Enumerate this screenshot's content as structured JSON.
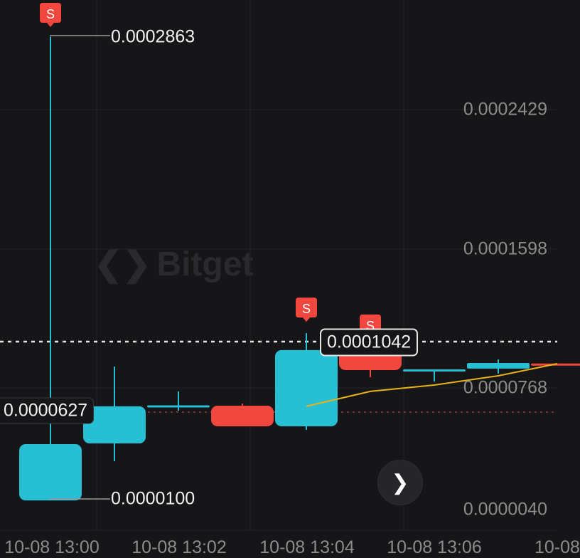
{
  "brand": "Bitget",
  "chart_data": {
    "type": "candlestick",
    "x_tick_labels": [
      "10-08 13:00",
      "10-08 13:02",
      "10-08 13:04",
      "10-08 13:06",
      "10-08"
    ],
    "y_tick_labels": [
      "0.0002429",
      "0.0001598",
      "0.0000768",
      "0.0000040"
    ],
    "y_ticks": [
      0.0002429,
      0.0001598,
      7.68e-05,
      4e-06
    ],
    "candles": [
      {
        "o": 1e-05,
        "h": 0.0002863,
        "l": 1e-05,
        "c": 4.36e-05
      },
      {
        "o": 4.4e-05,
        "h": 8.98e-05,
        "l": 3.34e-05,
        "c": 6.61e-05
      },
      {
        "o": 6.64e-05,
        "h": 7.5e-05,
        "l": 6.35e-05,
        "c": 6.67e-05
      },
      {
        "o": 6.65e-05,
        "h": 6.77e-05,
        "l": 5.42e-05,
        "c": 5.42e-05
      },
      {
        "o": 5.42e-05,
        "h": 0.0001097,
        "l": 5.21e-05,
        "c": 9.96e-05
      },
      {
        "o": 9.96e-05,
        "h": 9.96e-05,
        "l": 8.34e-05,
        "c": 8.77e-05
      },
      {
        "o": 8.77e-05,
        "h": 8.81e-05,
        "l": 8.09e-05,
        "c": 8.81e-05
      },
      {
        "o": 8.86e-05,
        "h": 9.4e-05,
        "l": 8.56e-05,
        "c": 9.19e-05
      },
      {
        "o": 9.16e-05,
        "h": 9.16e-05,
        "l": 9.08e-05,
        "c": 9.08e-05
      }
    ],
    "moving_average": [
      null,
      null,
      null,
      null,
      6.61e-05,
      7.5e-05,
      7.88e-05,
      8.43e-05,
      9.15e-05
    ],
    "sell_markers": [
      0,
      4,
      5
    ],
    "sell_marker_label": "S",
    "high_label": "0.0002863",
    "low_label": "0.0000100",
    "last_price": 0.0001042,
    "last_price_label": "0.0001042",
    "ref_price": 6.27e-05,
    "ref_price_label": "0.0000627",
    "colors": {
      "up": "#26bfd4",
      "down": "#f2473f",
      "ma": "#e8b21a",
      "background": "#161618"
    }
  },
  "nav": {
    "next_icon": "chevron-right-icon"
  }
}
